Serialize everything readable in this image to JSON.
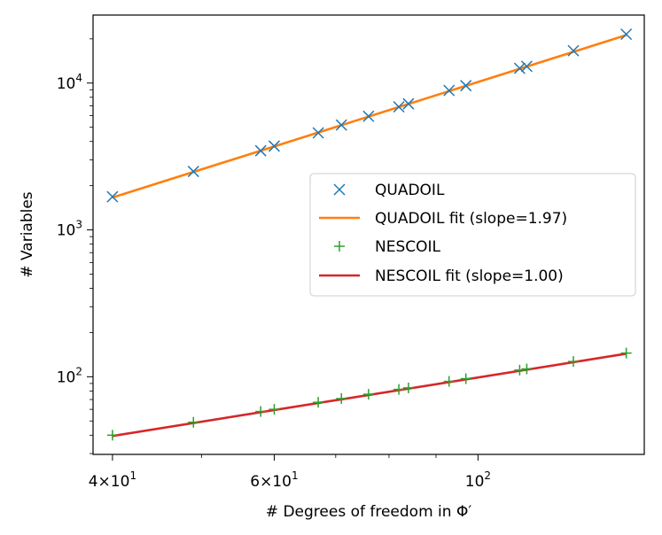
{
  "chart_data": {
    "type": "scatter",
    "xscale": "log",
    "yscale": "log",
    "xlim": [
      38.1,
      151.7
    ],
    "ylim": [
      29.6,
      29040
    ],
    "xlabel": "# Degrees of freedom in Φ′",
    "ylabel": "# Variables",
    "grid": false,
    "legend_position": "center-right",
    "xticks": [
      {
        "value": 40,
        "base": "4×10",
        "exp": "1"
      },
      {
        "value": 60,
        "base": "6×10",
        "exp": "1"
      },
      {
        "value": 100,
        "base": "10",
        "exp": "2"
      }
    ],
    "yticks": [
      {
        "value": 100,
        "base": "10",
        "exp": "2"
      },
      {
        "value": 1000,
        "base": "10",
        "exp": "3"
      },
      {
        "value": 10000,
        "base": "10",
        "exp": "4"
      }
    ],
    "series": [
      {
        "name": "QUADOIL",
        "kind": "marker-x",
        "color": "#1f77b4",
        "x": [
          40,
          49,
          58,
          60,
          67,
          71,
          76,
          82,
          84,
          93,
          97,
          111,
          113,
          127,
          145
        ],
        "y": [
          1681,
          2500,
          3460,
          3721,
          4580,
          5181,
          5940,
          6889,
          7225,
          8900,
          9600,
          12600,
          13000,
          16600,
          21500
        ]
      },
      {
        "name": "QUADOIL fit (slope=1.97)",
        "kind": "line",
        "color": "#ff7f0e",
        "x": [
          40,
          145
        ],
        "y": [
          1660,
          21200
        ]
      },
      {
        "name": "NESCOIL",
        "kind": "marker-plus",
        "color": "#2ca02c",
        "x": [
          40,
          49,
          58,
          60,
          67,
          71,
          76,
          82,
          84,
          93,
          97,
          111,
          113,
          127,
          145
        ],
        "y": [
          40,
          49,
          58,
          60,
          67,
          71,
          76,
          82,
          84,
          93,
          97,
          111,
          113,
          127,
          145
        ]
      },
      {
        "name": "NESCOIL fit (slope=1.00)",
        "kind": "line",
        "color": "#d62728",
        "x": [
          40,
          145
        ],
        "y": [
          39.5,
          143.5
        ]
      }
    ]
  }
}
